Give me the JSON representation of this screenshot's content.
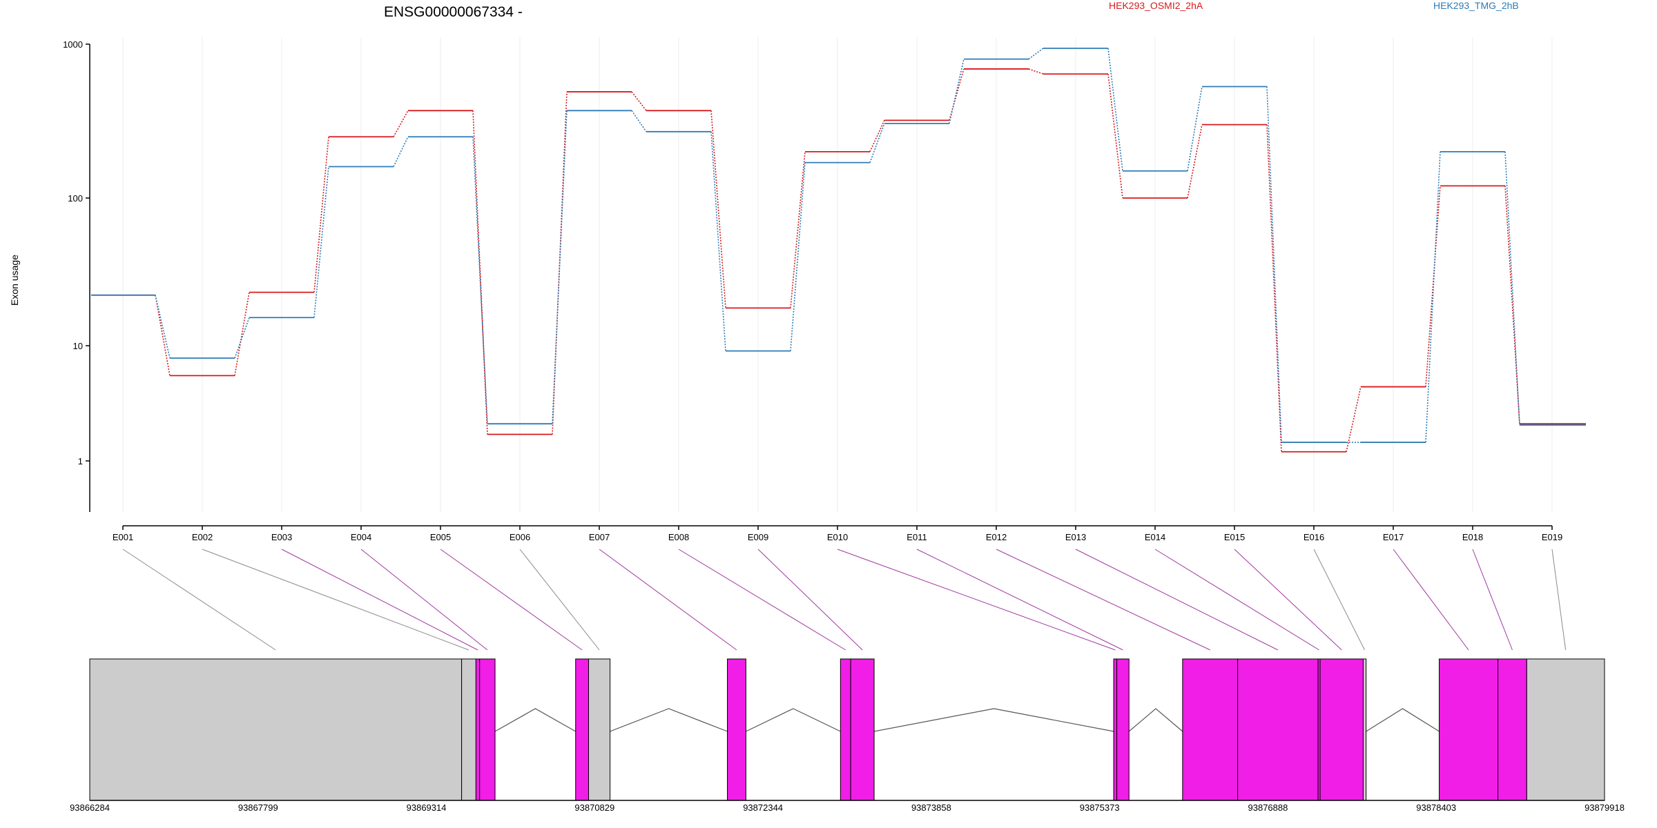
{
  "chart_data": {
    "type": "line",
    "title": "ENSG00000067334 -",
    "ylabel": "Exon usage",
    "yscale": "log",
    "ylim": [
      0.5,
      1000
    ],
    "yticks": [
      1,
      10,
      100,
      1000
    ],
    "ytick_labels": [
      "1",
      "10",
      "100",
      "1000"
    ],
    "categories": [
      "E001",
      "E002",
      "E003",
      "E004",
      "E005",
      "E006",
      "E007",
      "E008",
      "E009",
      "E010",
      "E011",
      "E012",
      "E013",
      "E014",
      "E015",
      "E016",
      "E017",
      "E018",
      "E019"
    ],
    "series": [
      {
        "name": "HEK293_OSMI2_2hA",
        "color": "#d7191c",
        "values": [
          22,
          5.5,
          23,
          250,
          370,
          1.7,
          490,
          370,
          18,
          200,
          320,
          690,
          640,
          100,
          300,
          1.2,
          4.4,
          120,
          2.1
        ]
      },
      {
        "name": "HEK293_TMG_2hB",
        "color": "#2c7bb6",
        "values": [
          22,
          7.8,
          15.5,
          160,
          250,
          2.1,
          370,
          270,
          9,
          170,
          305,
          800,
          940,
          150,
          530,
          1.45,
          1.45,
          200,
          2.05
        ]
      }
    ],
    "gene_model": {
      "coordinate_ticks": [
        "93866284",
        "93867799",
        "93869314",
        "93870829",
        "93872344",
        "93873858",
        "93875373",
        "93876888",
        "93878403",
        "93879918"
      ],
      "range": [
        93866284,
        93879918
      ],
      "exon_color": "#f01ee6",
      "utr_color": "#cccccc",
      "exons": [
        {
          "id": "E001",
          "start": 93866284,
          "end": 93869631,
          "type": "utr"
        },
        {
          "id": "E002",
          "start": 93869631,
          "end": 93869760,
          "type": "utr"
        },
        {
          "id": "E003",
          "start": 93869760,
          "end": 93869793,
          "type": "coding"
        },
        {
          "id": "E004",
          "start": 93869793,
          "end": 93869932,
          "type": "coding"
        },
        {
          "id": "E005",
          "start": 93870657,
          "end": 93870774,
          "type": "coding"
        },
        {
          "id": "E006",
          "start": 93870774,
          "end": 93870967,
          "type": "utr"
        },
        {
          "id": "E007",
          "start": 93872023,
          "end": 93872190,
          "type": "coding"
        },
        {
          "id": "E008",
          "start": 93873041,
          "end": 93873133,
          "type": "coding"
        },
        {
          "id": "E009",
          "start": 93873133,
          "end": 93873344,
          "type": "coding"
        },
        {
          "id": "E010",
          "start": 93875500,
          "end": 93875528,
          "type": "coding"
        },
        {
          "id": "E011",
          "start": 93875528,
          "end": 93875638,
          "type": "coding"
        },
        {
          "id": "E012",
          "start": 93876120,
          "end": 93876616,
          "type": "coding"
        },
        {
          "id": "E013",
          "start": 93876616,
          "end": 93877340,
          "type": "coding"
        },
        {
          "id": "E014",
          "start": 93877340,
          "end": 93877358,
          "type": "coding"
        },
        {
          "id": "E015",
          "start": 93877358,
          "end": 93877746,
          "type": "coding"
        },
        {
          "id": "E016",
          "start": 93877746,
          "end": 93877772,
          "type": "utr"
        },
        {
          "id": "E017",
          "start": 93878430,
          "end": 93878958,
          "type": "coding"
        },
        {
          "id": "E018",
          "start": 93878958,
          "end": 93879218,
          "type": "coding"
        },
        {
          "id": "E019",
          "start": 93879218,
          "end": 93879918,
          "type": "utr"
        }
      ],
      "introns": [
        [
          93869932,
          93870657
        ],
        [
          93870967,
          93872023
        ],
        [
          93872190,
          93873041
        ],
        [
          93873344,
          93875500
        ],
        [
          93875638,
          93876120
        ],
        [
          93877772,
          93878430
        ]
      ]
    }
  }
}
